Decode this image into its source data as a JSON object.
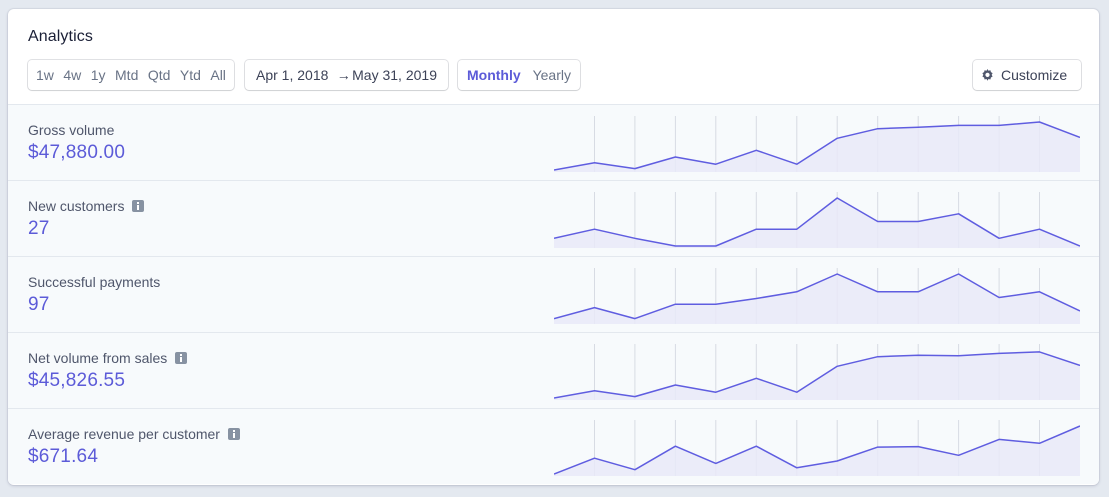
{
  "header": {
    "title": "Analytics"
  },
  "toolbar": {
    "ranges": [
      "1w",
      "4w",
      "1y",
      "Mtd",
      "Qtd",
      "Ytd",
      "All"
    ],
    "date_start": "Apr 1, 2018",
    "date_arrow": "→",
    "date_end": "May 31, 2019",
    "intervals": [
      "Monthly",
      "Yearly"
    ],
    "active_interval": "Monthly",
    "customize_label": "Customize",
    "customize_icon": "gear-icon"
  },
  "colors": {
    "accent": "#5c5bd8",
    "line": "#5f5de0",
    "area_fill": "#e9e9f8",
    "grid": "#d7dbe3"
  },
  "metrics": [
    {
      "label": "Gross volume",
      "value": "$47,880.00",
      "info_icon": false,
      "series": [
        0.0,
        0.15,
        0.03,
        0.27,
        0.12,
        0.41,
        0.12,
        0.66,
        0.86,
        0.89,
        0.93,
        0.93,
        1.0,
        0.68
      ]
    },
    {
      "label": "New customers",
      "value": "27",
      "info_icon": true,
      "series": [
        0.16,
        0.35,
        0.16,
        0.0,
        0.0,
        0.35,
        0.35,
        1.0,
        0.51,
        0.51,
        0.67,
        0.16,
        0.35,
        0.0
      ]
    },
    {
      "label": "Successful payments",
      "value": "97",
      "info_icon": false,
      "series": [
        0.07,
        0.3,
        0.07,
        0.37,
        0.37,
        0.49,
        0.63,
        1.0,
        0.63,
        0.63,
        1.0,
        0.51,
        0.63,
        0.23
      ]
    },
    {
      "label": "Net volume from sales",
      "value": "$45,826.55",
      "info_icon": true,
      "series": [
        0.0,
        0.15,
        0.03,
        0.27,
        0.12,
        0.41,
        0.12,
        0.66,
        0.86,
        0.89,
        0.88,
        0.93,
        0.96,
        0.68
      ]
    },
    {
      "label": "Average revenue per customer",
      "value": "$671.64",
      "info_icon": true,
      "series": [
        0.0,
        0.33,
        0.09,
        0.58,
        0.22,
        0.58,
        0.13,
        0.27,
        0.56,
        0.57,
        0.39,
        0.72,
        0.64,
        1.0
      ]
    }
  ]
}
